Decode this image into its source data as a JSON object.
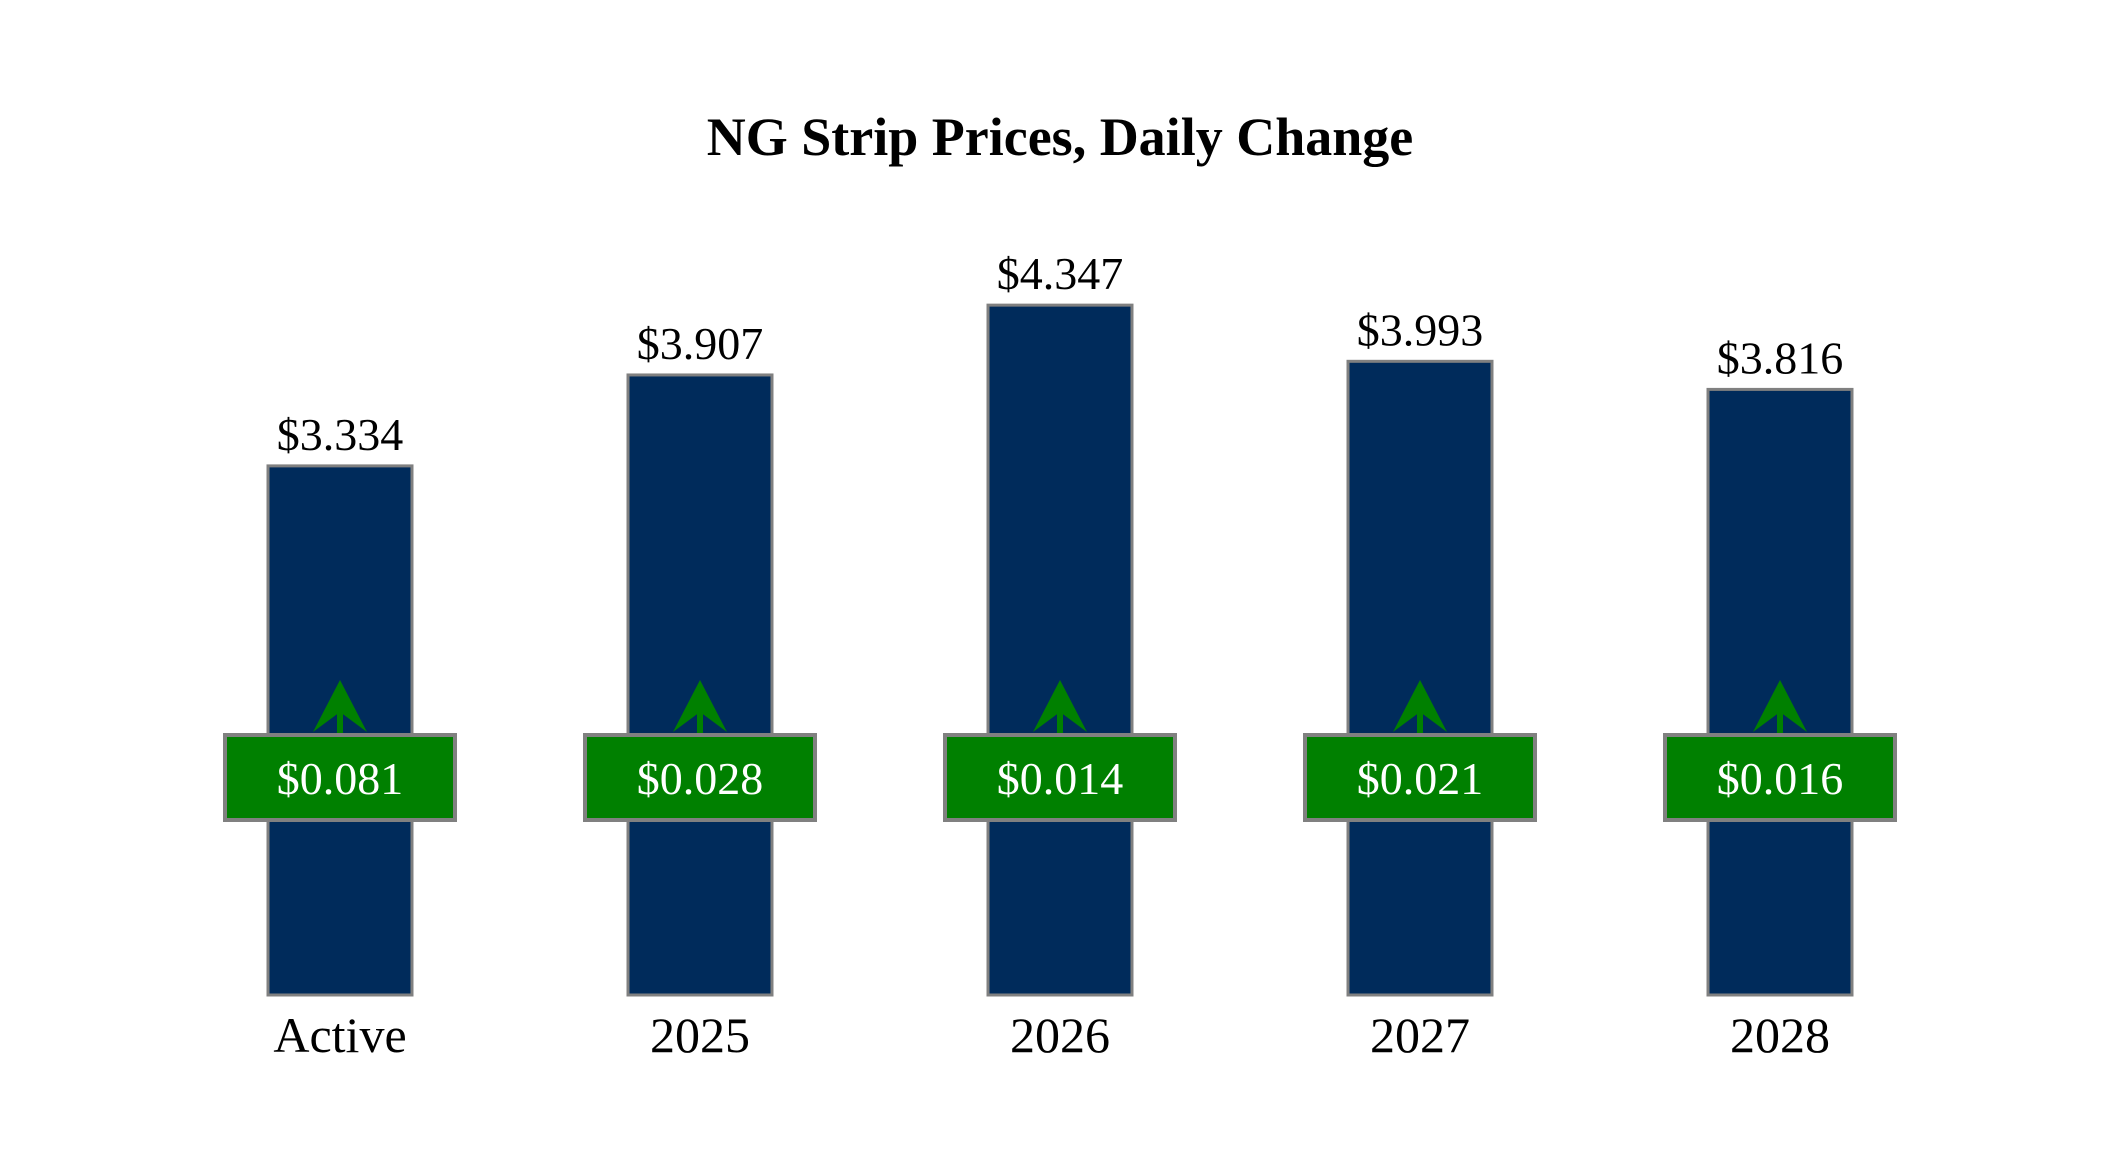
{
  "chart_data": {
    "type": "bar",
    "title": "NG Strip Prices, Daily Change",
    "categories": [
      "Active",
      "2025",
      "2026",
      "2027",
      "2028"
    ],
    "values": [
      3.334,
      3.907,
      4.347,
      3.993,
      3.816
    ],
    "value_labels": [
      "$3.334",
      "$3.907",
      "$4.347",
      "$3.993",
      "$3.816"
    ],
    "changes": [
      0.081,
      0.028,
      0.014,
      0.021,
      0.016
    ],
    "change_labels": [
      "$0.081",
      "$0.028",
      "$0.014",
      "$0.021",
      "$0.016"
    ],
    "change_direction": [
      "up",
      "up",
      "up",
      "up",
      "up"
    ],
    "ylim": [
      0,
      4.6
    ],
    "grid": false,
    "colors": {
      "bar": "#002b5b",
      "bar_border": "#808080",
      "change_box": "#008000",
      "arrow": "#008000"
    }
  }
}
